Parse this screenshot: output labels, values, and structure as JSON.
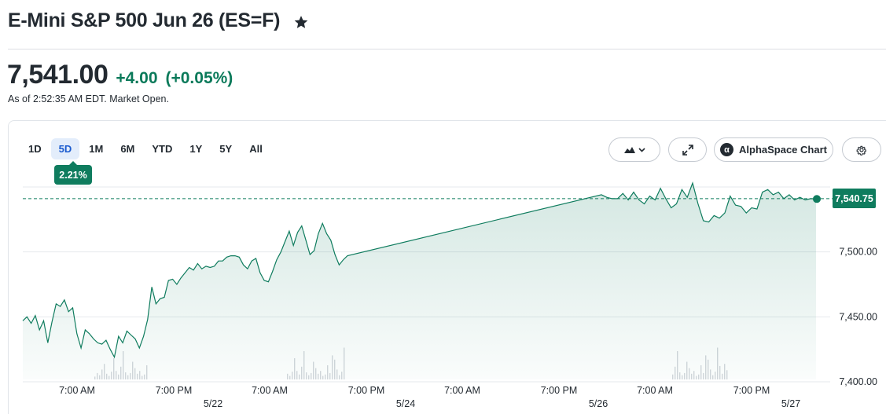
{
  "header": {
    "title": "E-Mini S&P 500 Jun 26 (ES=F)",
    "price": "7,541.00",
    "change": "+4.00",
    "change_pct": "(+0.05%)",
    "as_of": "As of 2:52:35 AM EDT. Market Open."
  },
  "colors": {
    "positive": "#0b7a5a",
    "line": "#0f7c5e",
    "accent_tab_bg": "#e3edfb",
    "accent_tab_text": "#1c5ccf"
  },
  "range_tabs": [
    "1D",
    "5D",
    "1M",
    "6M",
    "YTD",
    "1Y",
    "5Y",
    "All"
  ],
  "active_range": "5D",
  "perf_badge": "2.21%",
  "toolbar": {
    "chart_type_icon": "mountain-chart-icon",
    "expand_icon": "expand-arrows-icon",
    "alpha_label": "AlphaSpace Chart",
    "alpha_logo_glyph": "α",
    "settings_icon": "gear-icon"
  },
  "last_price_label": "7,540.75",
  "chart_data": {
    "type": "area",
    "title": "",
    "ylim": [
      7393,
      7559
    ],
    "y_ticks": [
      "7,550.00",
      "7,500.00",
      "7,450.00",
      "7,400.00"
    ],
    "y_tick_values": [
      7550,
      7500,
      7450,
      7400
    ],
    "x_tick_labels": [
      "7:00 AM",
      "7:00 PM",
      "7:00 AM",
      "7:00 PM",
      "7:00 AM",
      "7:00 PM",
      "7:00 AM",
      "7:00 PM"
    ],
    "x_date_labels": [
      "5/22",
      "5/24",
      "5/26",
      "5/27"
    ],
    "reference_line": 7541,
    "last_value": 7540.75,
    "grid": true,
    "series": [
      {
        "values": [
          7447,
          7450,
          7445,
          7451,
          7440,
          7447,
          7430,
          7446,
          7460,
          7458,
          7463,
          7454,
          7457,
          7437,
          7426,
          7440,
          7437,
          7433,
          7430,
          7429,
          7432,
          7425,
          7419,
          7435,
          7430,
          7439,
          7436,
          7433,
          7426,
          7435,
          7448,
          7473,
          7460,
          7464,
          7465,
          7478,
          7479,
          7475,
          7480,
          7484,
          7488,
          7486,
          7491,
          7487,
          7489,
          7488,
          7489,
          7493,
          7493,
          7496,
          7497,
          7497,
          7496,
          7490,
          7487,
          7493,
          7495,
          7484,
          7478,
          7477,
          7485,
          7494,
          7500,
          7508,
          7516,
          7505,
          7515,
          7520,
          7509,
          7498,
          7501,
          7514,
          7522,
          7514,
          7509,
          7498,
          7490,
          7494,
          7497,
          7544,
          7542,
          7541,
          7541,
          7545,
          7540,
          7546,
          7540,
          7537,
          7543,
          7540,
          7549,
          7541,
          7534,
          7537,
          7548,
          7542,
          7553,
          7537,
          7524,
          7523,
          7528,
          7526,
          7530,
          7543,
          7536,
          7535,
          7530,
          7534,
          7533,
          7546,
          7548,
          7544,
          7546,
          7541,
          7544,
          7540,
          7542,
          7540,
          7541,
          7540.75
        ]
      }
    ]
  }
}
